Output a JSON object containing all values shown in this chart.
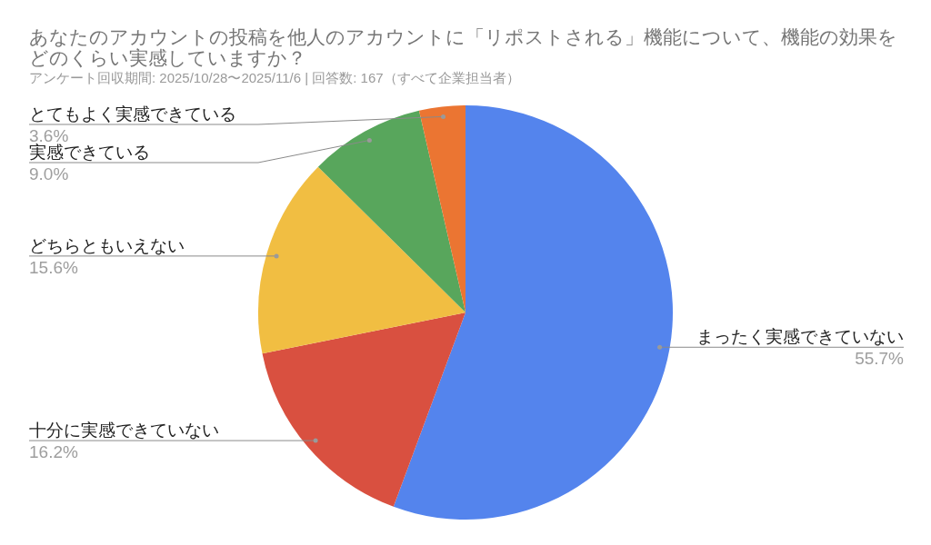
{
  "chart_data": {
    "type": "pie",
    "title": "あなたのアカウントの投稿を他人のアカウントに「リポストされる」機能について、機能の効果をどのくらい実感していますか？",
    "subtitle": "アンケート回収期間: 2025/10/28〜2025/11/6 | 回答数: 167（すべて企業担当者）",
    "categories": [
      "まったく実感できていない",
      "十分に実感できていない",
      "どちらともいえない",
      "実感できている",
      "とてもよく実感できている"
    ],
    "values": [
      55.7,
      16.2,
      15.6,
      9.0,
      3.6
    ],
    "colors": [
      "#5484ed",
      "#d95040",
      "#f1be42",
      "#58a65c",
      "#eb7532"
    ],
    "value_labels": [
      "55.7%",
      "16.2%",
      "15.6%",
      "9.0%",
      "3.6%"
    ]
  }
}
